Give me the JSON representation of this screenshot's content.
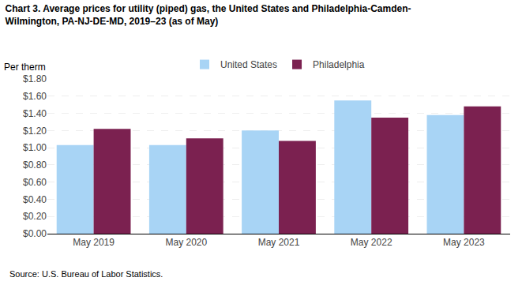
{
  "chart_data": {
    "type": "bar",
    "title": "Chart 3. Average prices for utility (piped) gas, the United States and Philadelphia-Camden-\nWilmington, PA-NJ-DE-MD, 2019–23 (as of May)",
    "ylabel": "Per therm",
    "annotations": [
      "Source: U.S. Bureau of Labor Statistics."
    ],
    "categories": [
      "May 2019",
      "May 2020",
      "May 2021",
      "May 2022",
      "May 2023"
    ],
    "series": [
      {
        "name": "United States",
        "color": "#a8d4f5",
        "values": [
          1.03,
          1.03,
          1.2,
          1.55,
          1.38
        ]
      },
      {
        "name": "Philadelphia",
        "color": "#7b2150",
        "values": [
          1.22,
          1.11,
          1.08,
          1.35,
          1.48
        ]
      }
    ],
    "ylim": [
      0,
      1.8
    ],
    "yticks": [
      {
        "value": 0.0,
        "label": "$0.00"
      },
      {
        "value": 0.2,
        "label": "$0.20"
      },
      {
        "value": 0.4,
        "label": "$0.40"
      },
      {
        "value": 0.6,
        "label": "$0.60"
      },
      {
        "value": 0.8,
        "label": "$0.80"
      },
      {
        "value": 1.0,
        "label": "$1.00"
      },
      {
        "value": 1.2,
        "label": "$1.20"
      },
      {
        "value": 1.4,
        "label": "$1.40"
      },
      {
        "value": 1.6,
        "label": "$1.60"
      },
      {
        "value": 1.8,
        "label": "$1.80"
      }
    ],
    "grid": true,
    "legend": "top"
  }
}
